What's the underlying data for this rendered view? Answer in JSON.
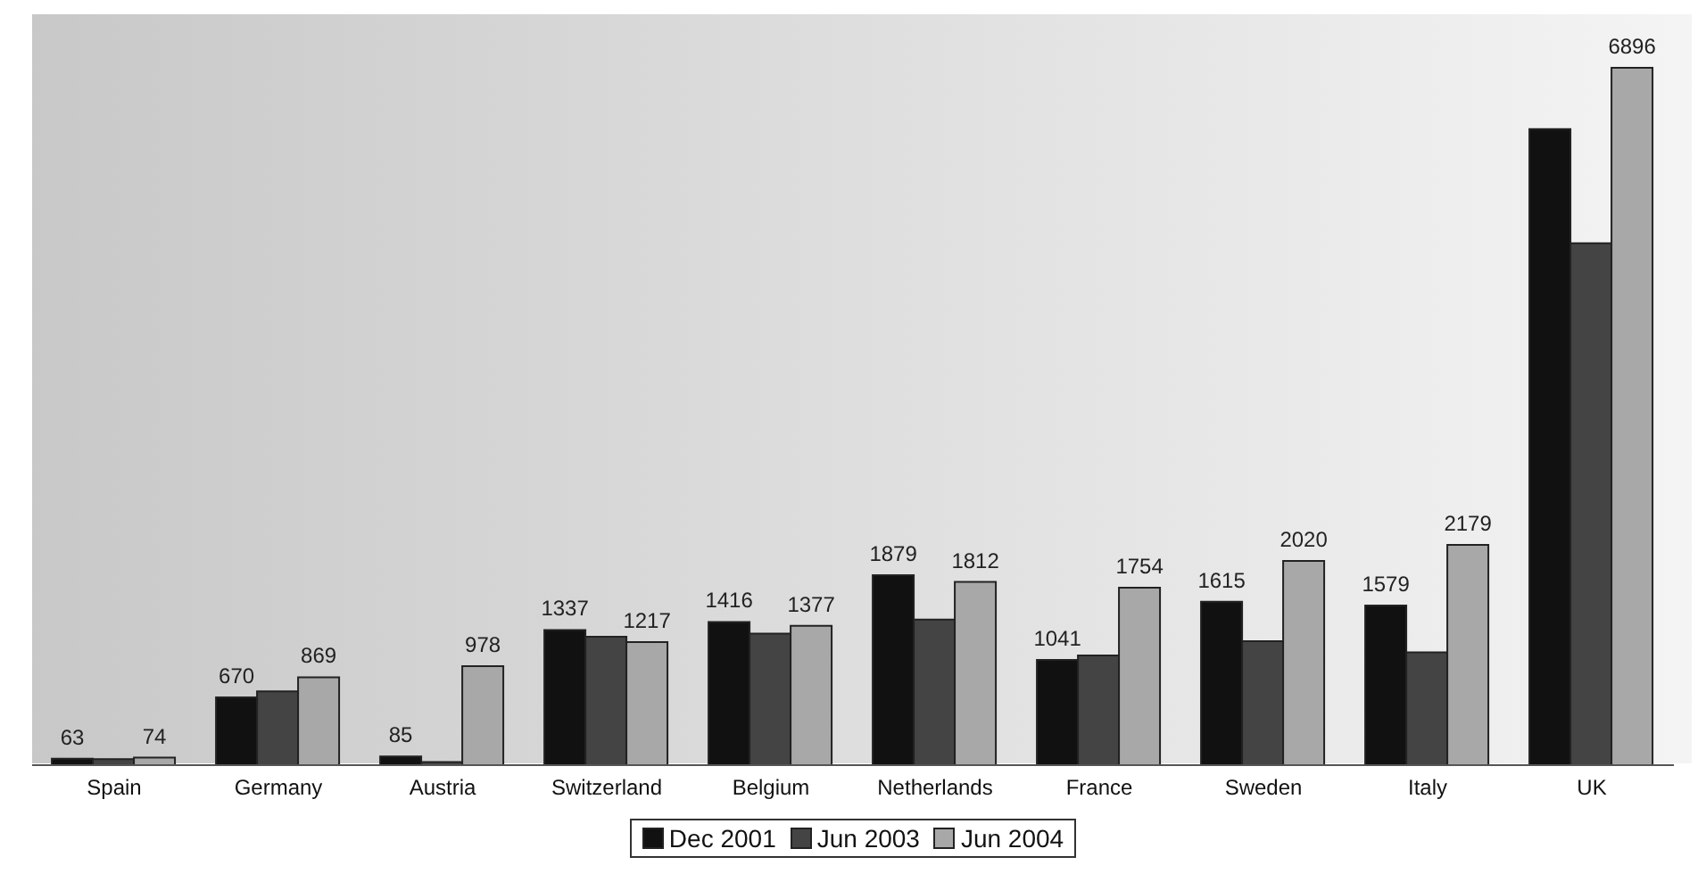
{
  "chart_data": {
    "type": "bar",
    "categories": [
      "Spain",
      "Germany",
      "Austria",
      "Switzerland",
      "Belgium",
      "Netherlands",
      "France",
      "Sweden",
      "Italy",
      "UK"
    ],
    "series": [
      {
        "name": "Dec 2001",
        "color": "#111111",
        "values": [
          63,
          670,
          85,
          1337,
          1416,
          1879,
          1041,
          1615,
          1579,
          6290
        ],
        "value_labels": [
          "63",
          "670",
          "85",
          "1337",
          "1416",
          "1879",
          "1041",
          "1615",
          "1579",
          null
        ]
      },
      {
        "name": "Jun 2003",
        "color": "#444444",
        "values": [
          60,
          730,
          30,
          1270,
          1300,
          1440,
          1085,
          1225,
          1115,
          5160
        ]
      },
      {
        "name": "Jun 2004",
        "color": "#a8a8a8",
        "values": [
          74,
          869,
          978,
          1217,
          1377,
          1812,
          1754,
          2020,
          2179,
          6896
        ],
        "value_labels": [
          "74",
          "869",
          "978",
          "1217",
          "1377",
          "1812",
          "1754",
          "2020",
          "2179",
          "6896"
        ]
      }
    ],
    "legend": "bottom"
  }
}
